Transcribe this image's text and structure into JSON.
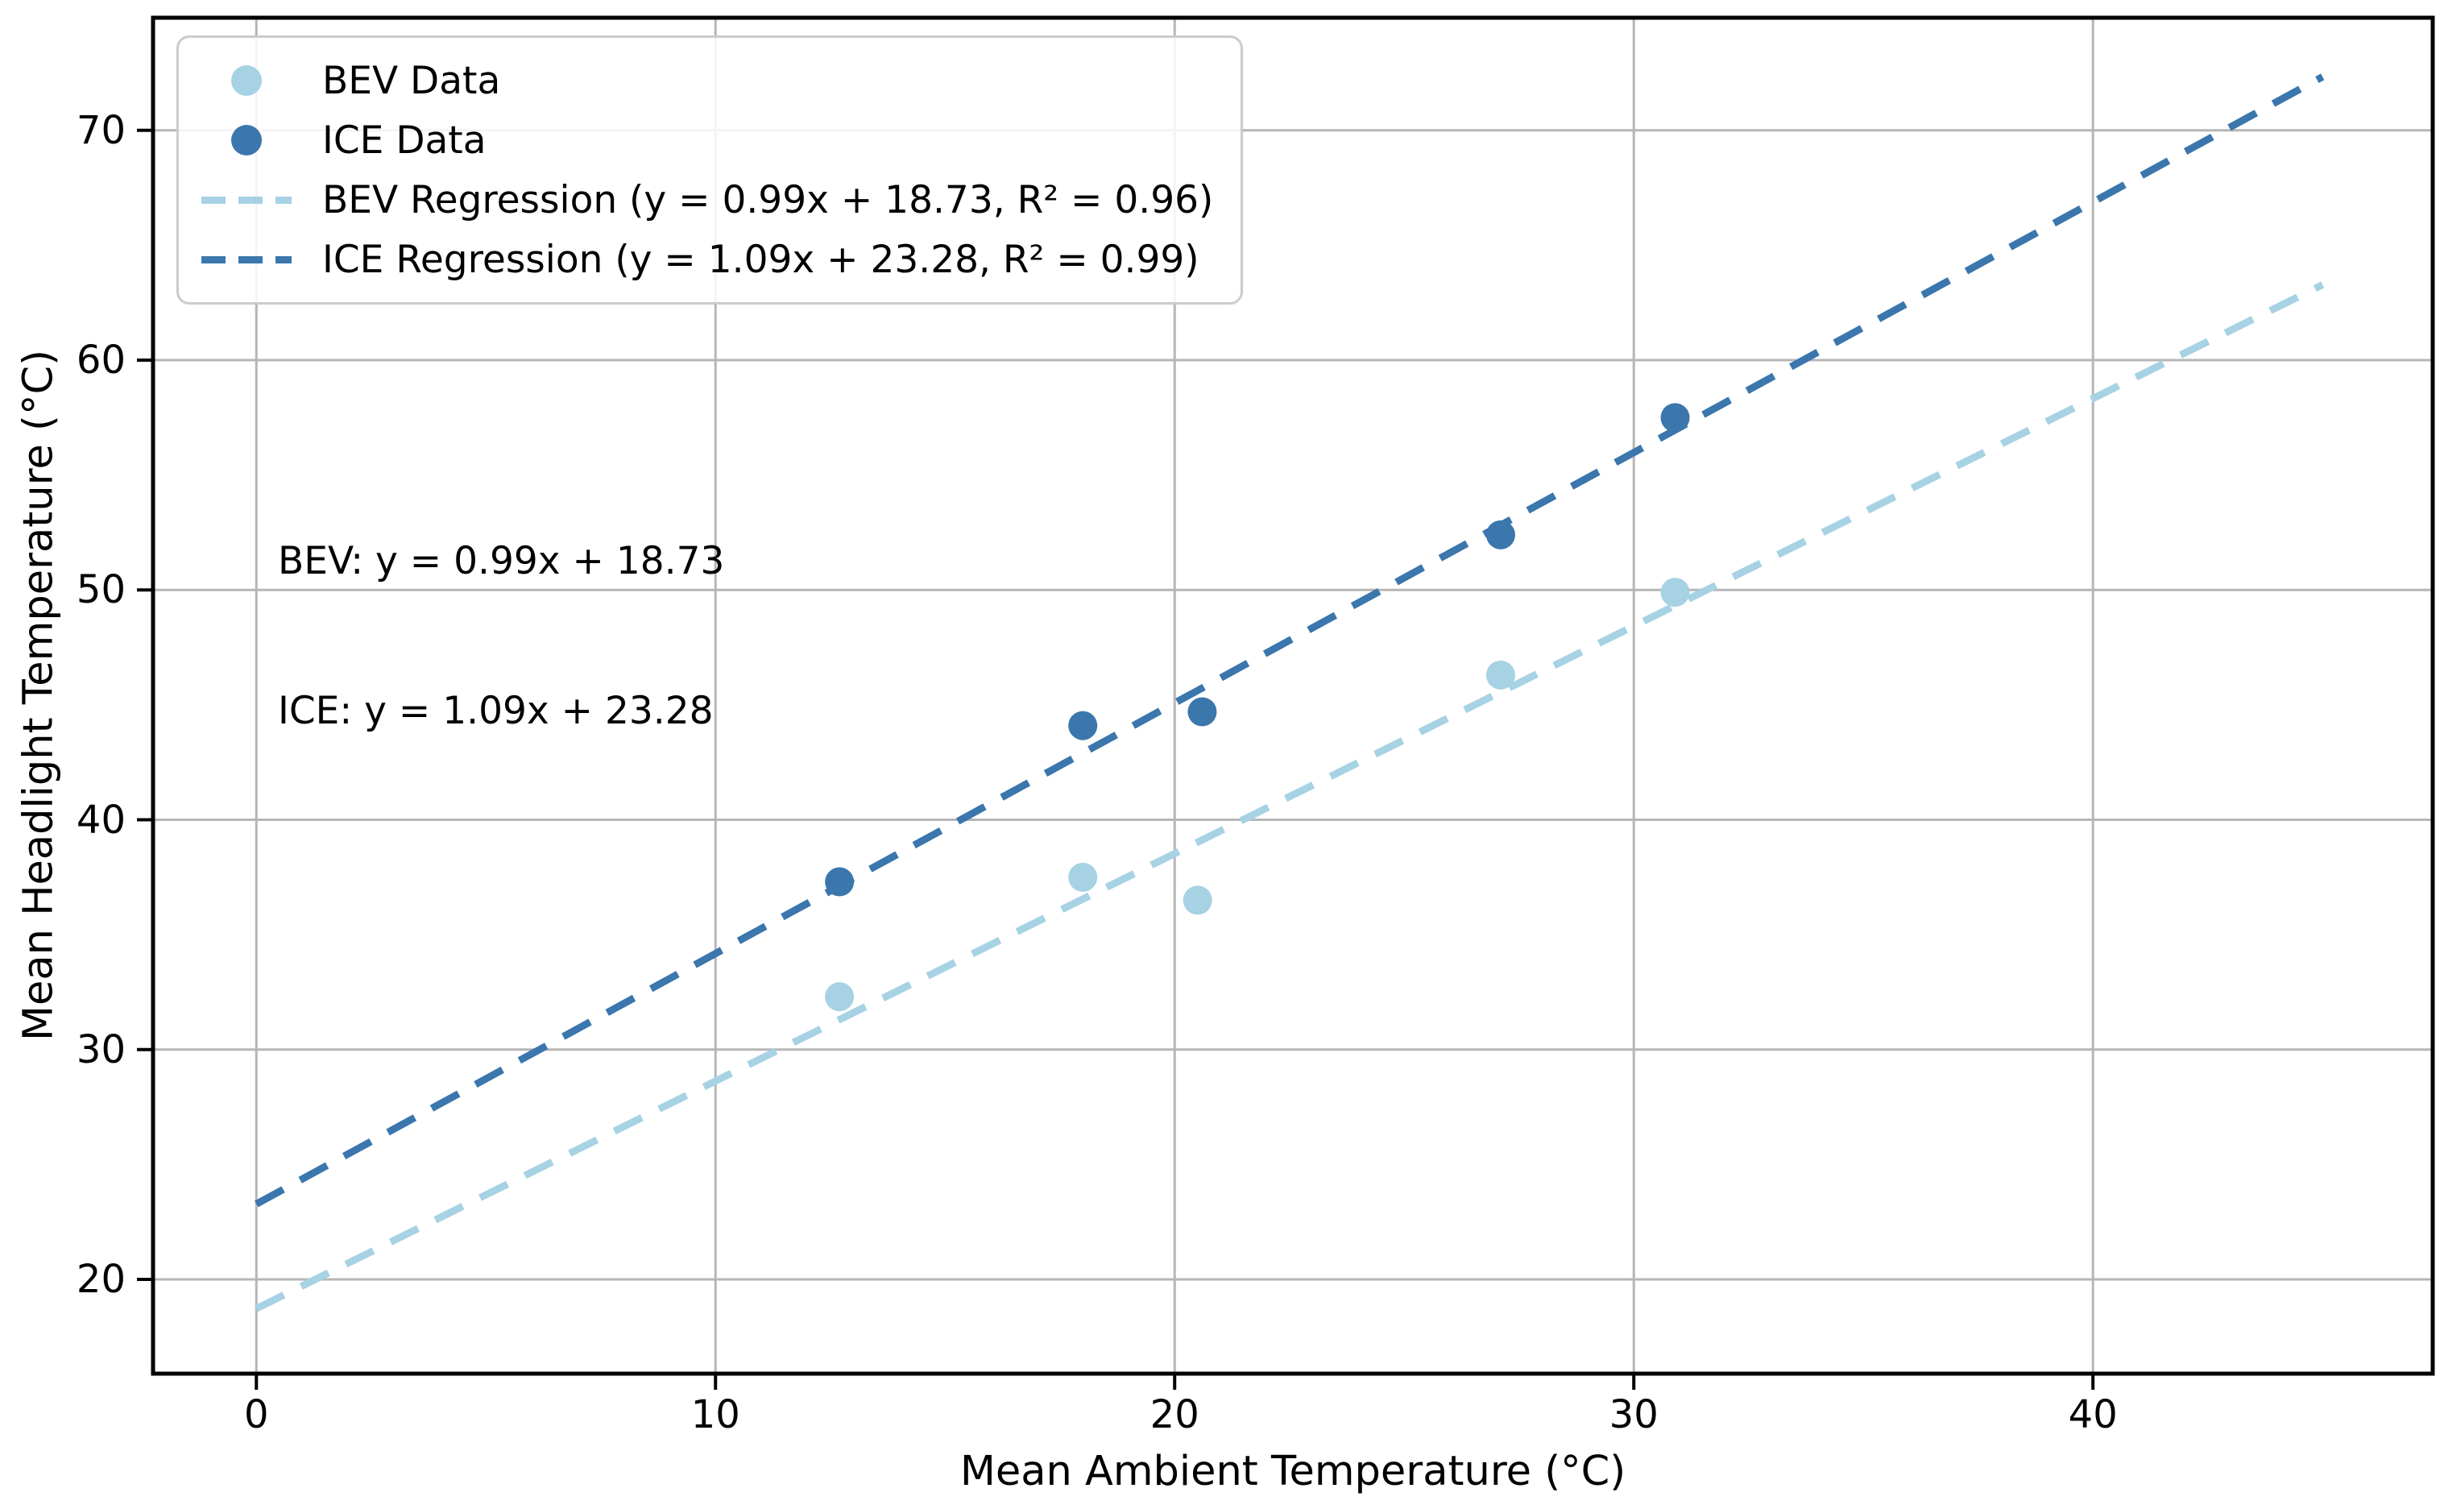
{
  "chart_data": {
    "type": "scatter",
    "title": "",
    "xlabel": "Mean Ambient Temperature (°C)",
    "ylabel": "Mean Headlight Temperature (°C)",
    "xlim": [
      -2.25,
      47.4
    ],
    "ylim": [
      15.9,
      74.9
    ],
    "xticks": [
      0,
      10,
      20,
      30,
      40
    ],
    "yticks": [
      20,
      30,
      40,
      50,
      60,
      70
    ],
    "grid": true,
    "legend_position": "upper left",
    "series": [
      {
        "name": "BEV Data",
        "color_key": "bev",
        "marker": "circle",
        "points": [
          [
            12.7,
            32.3
          ],
          [
            18.0,
            37.5
          ],
          [
            20.5,
            36.5
          ],
          [
            27.1,
            46.3
          ],
          [
            30.9,
            49.9
          ]
        ]
      },
      {
        "name": "ICE Data",
        "color_key": "ice",
        "marker": "circle",
        "points": [
          [
            12.7,
            37.3
          ],
          [
            18.0,
            44.1
          ],
          [
            20.6,
            44.7
          ],
          [
            27.1,
            52.4
          ],
          [
            30.9,
            57.5
          ]
        ]
      }
    ],
    "regressions": [
      {
        "name": "BEV Regression",
        "color_key": "bev",
        "style": "dashed",
        "slope": 0.99,
        "intercept": 18.73,
        "r2": 0.96,
        "x_start": 0,
        "x_end": 45
      },
      {
        "name": "ICE Regression",
        "color_key": "ice",
        "style": "dashed",
        "slope": 1.09,
        "intercept": 23.28,
        "r2": 0.99,
        "x_start": 0,
        "x_end": 45
      }
    ]
  },
  "legend": {
    "items": [
      {
        "label": "BEV Data",
        "handle": "dot",
        "series": "bev"
      },
      {
        "label": "ICE Data",
        "handle": "dot",
        "series": "ice"
      },
      {
        "label": "BEV Regression (y = 0.99x + 18.73, R² = 0.96)",
        "handle": "dash",
        "series": "bev"
      },
      {
        "label": "ICE Regression (y = 1.09x + 23.28, R² = 0.99)",
        "handle": "dash",
        "series": "ice"
      }
    ]
  },
  "annotation": {
    "lines": [
      "BEV: y = 0.99x + 18.73",
      "ICE: y = 1.09x + 23.28"
    ]
  },
  "colors": {
    "bev": "#a6d2e4",
    "ice": "#3b76ad",
    "grid": "#b6b6b6",
    "spine": "#000000",
    "text": "#000000",
    "legend_border": "#cccccc",
    "background": "#ffffff"
  }
}
